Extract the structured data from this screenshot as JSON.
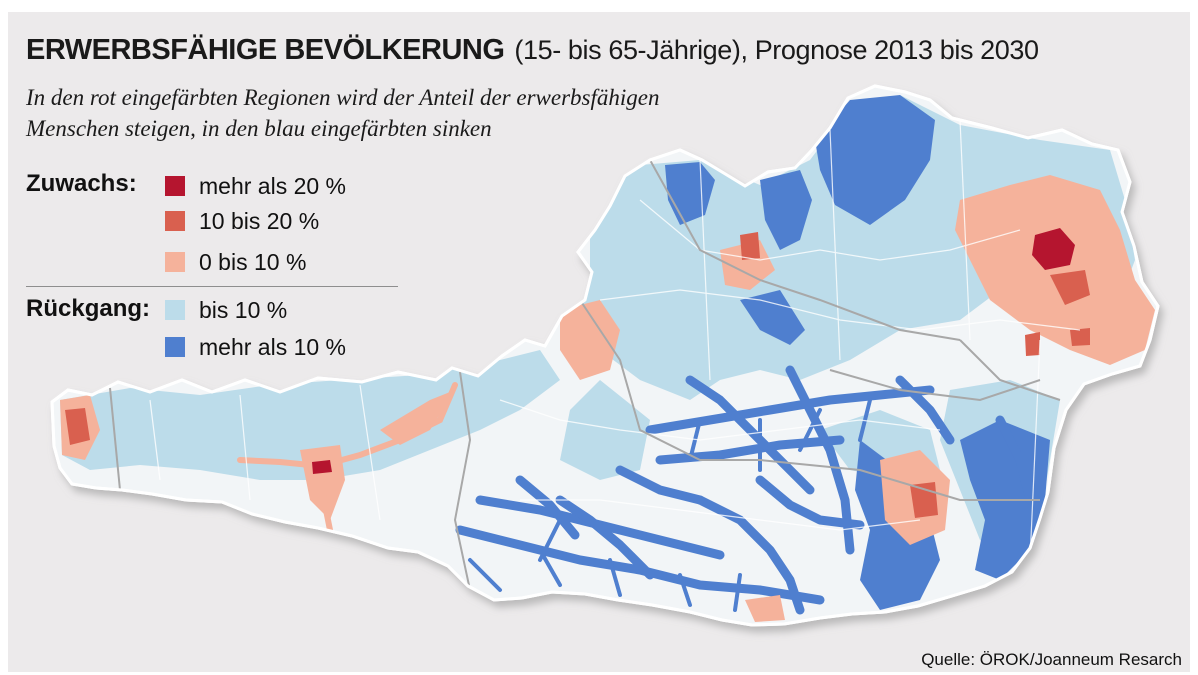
{
  "header": {
    "title_bold": "ERWERBSFÄHIGE BEVÖLKERUNG",
    "title_rest": "(15- bis 65-Jährige), Prognose 2013 bis 2030",
    "subtitle_line1": "In den rot eingefärbten Regionen wird der Anteil der erwerbsfähigen",
    "subtitle_line2": "Menschen steigen, in den blau eingefärbten sinken"
  },
  "legend": {
    "zuwachs_label": "Zuwachs:",
    "rueckgang_label": "Rückgang:",
    "items": [
      {
        "label": "mehr als 20 %",
        "color": "#b5152f"
      },
      {
        "label": "10 bis 20 %",
        "color": "#d9604f"
      },
      {
        "label": "0 bis 10 %",
        "color": "#f5b29b"
      },
      {
        "label": "bis 10 %",
        "color": "#bcdcea"
      },
      {
        "label": "mehr als 10 %",
        "color": "#4f7fcf"
      }
    ]
  },
  "colors": {
    "background": "#eceaeb",
    "land_base": "#f2f5f7",
    "decline_light": "#bcdcea",
    "decline_strong": "#4f7fcf",
    "growth_light": "#f5b29b",
    "growth_mid": "#d9604f",
    "growth_strong": "#b5152f"
  },
  "source": "Quelle: ÖROK/Joanneum Resarch"
}
